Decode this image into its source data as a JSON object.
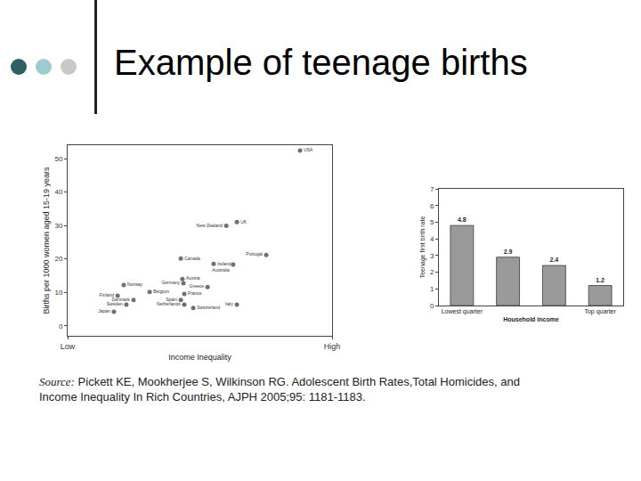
{
  "slide": {
    "title": "Example of teenage births",
    "source_label": "Source:",
    "source": "Pickett KE, Mookherjee S, Wilkinson RG. Adolescent Birth Rates,Total Homicides, and Income Inequality In Rich Countries, AJPH 2005;95: 1181-1183."
  },
  "chart_data": [
    {
      "type": "scatter",
      "x_label": "Income Inequality",
      "y_label": "Births per 1000 women aged 15-19 years",
      "labels": [
        "USA",
        "UK",
        "New Zealand",
        "Portugal",
        "Canada",
        "Ireland",
        "Australia",
        "Norway",
        "Austria",
        "Germany",
        "Greece",
        "Belgium",
        "France",
        "Finland",
        "Denmark",
        "Spain",
        "Sweden",
        "Netherlands",
        "Switzerland",
        "Italy",
        "Japan"
      ],
      "x": [
        87.9,
        64.0,
        60.0,
        75.1,
        42.8,
        55.2,
        62.6,
        21.2,
        43.4,
        43.8,
        52.9,
        31.0,
        44.1,
        18.9,
        24.9,
        42.8,
        22.2,
        44.1,
        47.5,
        64.0,
        17.5
      ],
      "values": [
        52.4,
        31.0,
        29.9,
        21.2,
        20.1,
        18.5,
        18.3,
        12.2,
        14.0,
        12.7,
        11.6,
        10.1,
        9.5,
        9.0,
        7.7,
        7.7,
        6.3,
        6.3,
        5.3,
        6.3,
        4.2
      ],
      "color": "#707070",
      "xlim": [
        0,
        100
      ],
      "xticks": [
        {
          "value": 0,
          "label": "Low"
        },
        {
          "value": 100,
          "label": "High"
        }
      ],
      "ylim": [
        -3,
        54
      ],
      "yticks": [
        0,
        10,
        20,
        30,
        40,
        50
      ],
      "grid": false
    },
    {
      "type": "bar",
      "x_label": "Household income",
      "y_label": "Teenage first birth rate",
      "categories": [
        "Lowest quarter",
        null,
        null,
        "Top quarter"
      ],
      "values": [
        4.8,
        2.9,
        2.4,
        1.2
      ],
      "color": "#9a9a9a",
      "ylim": [
        0,
        7
      ],
      "yticks": [
        0,
        1,
        2,
        3,
        4,
        5,
        6,
        7
      ],
      "grid": false,
      "data_labels": true
    }
  ]
}
